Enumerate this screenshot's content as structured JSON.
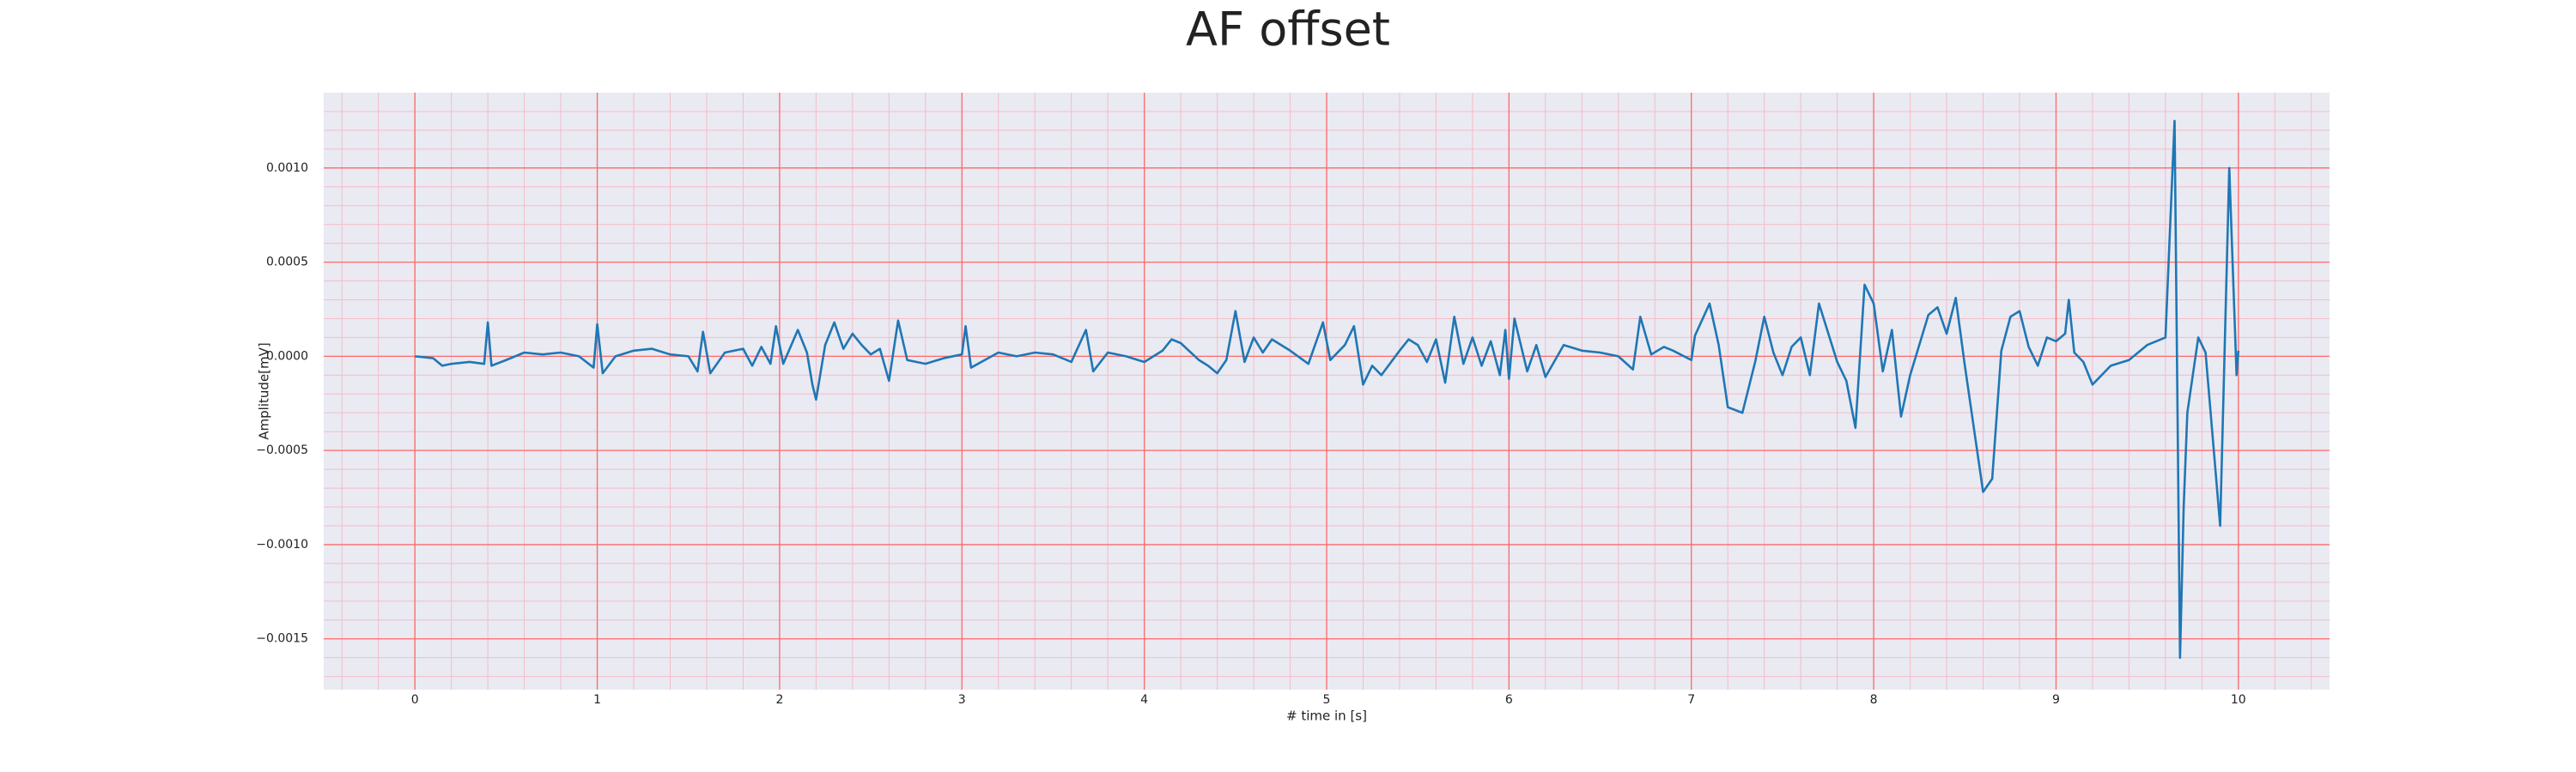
{
  "chart_data": {
    "type": "line",
    "title": "AF offset",
    "x_label": "# time in [s]",
    "y_label": "Amplitude[mV]",
    "xlim": [
      -0.5,
      10.5
    ],
    "xticks": [
      0,
      1,
      2,
      3,
      4,
      5,
      6,
      7,
      8,
      9,
      10
    ],
    "ylim": [
      -0.00177,
      0.0014
    ],
    "yticks": [
      {
        "value": -0.0015,
        "label": "−0.0015"
      },
      {
        "value": -0.001,
        "label": "−0.0010"
      },
      {
        "value": -0.0005,
        "label": "−0.0005"
      },
      {
        "value": 0,
        "label": "0.0000"
      },
      {
        "value": 0.0005,
        "label": "0.0005"
      },
      {
        "value": 0.001,
        "label": "0.0010"
      }
    ],
    "grid": true,
    "minor_grid": true,
    "grid_color": "#ff6a6a",
    "minor_grid_color": "#f4bcc8",
    "background": "#eaeaf2",
    "series": [
      {
        "name": "AF offset",
        "color": "#1f77b4",
        "x": [
          0,
          0.1,
          0.15,
          0.2,
          0.3,
          0.38,
          0.4,
          0.42,
          0.5,
          0.6,
          0.7,
          0.8,
          0.9,
          0.98,
          1.0,
          1.03,
          1.1,
          1.2,
          1.3,
          1.4,
          1.5,
          1.55,
          1.58,
          1.62,
          1.7,
          1.8,
          1.85,
          1.9,
          1.95,
          1.98,
          2.02,
          2.1,
          2.15,
          2.18,
          2.2,
          2.25,
          2.3,
          2.35,
          2.4,
          2.45,
          2.5,
          2.55,
          2.6,
          2.65,
          2.7,
          2.8,
          2.9,
          3.0,
          3.02,
          3.05,
          3.2,
          3.3,
          3.4,
          3.5,
          3.6,
          3.68,
          3.72,
          3.8,
          3.9,
          4.0,
          4.1,
          4.15,
          4.2,
          4.3,
          4.35,
          4.4,
          4.45,
          4.5,
          4.55,
          4.6,
          4.65,
          4.7,
          4.8,
          4.9,
          4.98,
          5.02,
          5.1,
          5.15,
          5.2,
          5.25,
          5.3,
          5.4,
          5.45,
          5.5,
          5.55,
          5.6,
          5.65,
          5.7,
          5.75,
          5.8,
          5.85,
          5.9,
          5.95,
          5.98,
          6.0,
          6.03,
          6.1,
          6.15,
          6.2,
          6.3,
          6.4,
          6.5,
          6.6,
          6.68,
          6.72,
          6.78,
          6.85,
          6.9,
          7.0,
          7.02,
          7.1,
          7.15,
          7.2,
          7.28,
          7.35,
          7.4,
          7.45,
          7.5,
          7.55,
          7.6,
          7.65,
          7.7,
          7.8,
          7.85,
          7.9,
          7.95,
          8.0,
          8.05,
          8.1,
          8.15,
          8.2,
          8.3,
          8.35,
          8.4,
          8.45,
          8.5,
          8.6,
          8.65,
          8.7,
          8.75,
          8.8,
          8.85,
          8.9,
          8.95,
          9.0,
          9.05,
          9.07,
          9.1,
          9.15,
          9.2,
          9.3,
          9.4,
          9.5,
          9.6,
          9.65,
          9.68,
          9.7,
          9.72,
          9.78,
          9.82,
          9.9,
          9.95,
          9.99,
          10.0
        ],
        "values": [
          0,
          -1e-05,
          -5e-05,
          -4e-05,
          -3e-05,
          -4e-05,
          0.00018,
          -5e-05,
          -2e-05,
          2e-05,
          1e-05,
          2e-05,
          0,
          -6e-05,
          0.00017,
          -9e-05,
          0,
          3e-05,
          4e-05,
          1e-05,
          0,
          -8e-05,
          0.00013,
          -9e-05,
          2e-05,
          4e-05,
          -5e-05,
          5e-05,
          -4e-05,
          0.00016,
          -4e-05,
          0.00014,
          2e-05,
          -0.00015,
          -0.00023,
          6e-05,
          0.00018,
          4e-05,
          0.00012,
          6e-05,
          1e-05,
          4e-05,
          -0.00013,
          0.00019,
          -2e-05,
          -4e-05,
          -1e-05,
          1e-05,
          0.00016,
          -6e-05,
          2e-05,
          0,
          2e-05,
          1e-05,
          -3e-05,
          0.00014,
          -8e-05,
          2e-05,
          0,
          -3e-05,
          3e-05,
          9e-05,
          7e-05,
          -2e-05,
          -5e-05,
          -9e-05,
          -2e-05,
          0.00024,
          -3e-05,
          0.0001,
          2e-05,
          9e-05,
          3e-05,
          -4e-05,
          0.00018,
          -2e-05,
          6e-05,
          0.00016,
          -0.00015,
          -5e-05,
          -0.0001,
          3e-05,
          9e-05,
          6e-05,
          -3e-05,
          9e-05,
          -0.00014,
          0.00021,
          -4e-05,
          0.0001,
          -5e-05,
          8e-05,
          -0.0001,
          0.00014,
          -0.00012,
          0.0002,
          -8e-05,
          6e-05,
          -0.00011,
          6e-05,
          3e-05,
          2e-05,
          0,
          -7e-05,
          0.00021,
          1e-05,
          5e-05,
          3e-05,
          -2e-05,
          0.00011,
          0.00028,
          6e-05,
          -0.00027,
          -0.0003,
          -3e-05,
          0.00021,
          2e-05,
          -0.0001,
          5e-05,
          0.0001,
          -0.0001,
          0.00028,
          -3e-05,
          -0.00013,
          -0.00038,
          0.00038,
          0.00028,
          -8e-05,
          0.00014,
          -0.00032,
          -0.0001,
          0.00022,
          0.00026,
          0.00012,
          0.00031,
          -5e-05,
          -0.00072,
          -0.00065,
          3e-05,
          0.00021,
          0.00024,
          5e-05,
          -5e-05,
          0.0001,
          8e-05,
          0.00012,
          0.0003,
          2e-05,
          -3e-05,
          -0.00015,
          -5e-05,
          -2e-05,
          6e-05,
          0.0001,
          0.00125,
          -0.0016,
          -0.0008,
          -0.0003,
          0.0001,
          2e-05,
          -0.0009,
          0.001,
          -0.0001,
          3e-05
        ]
      }
    ]
  }
}
